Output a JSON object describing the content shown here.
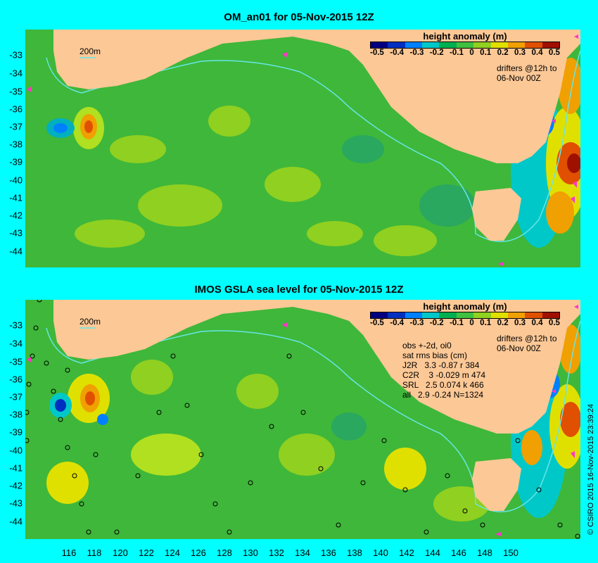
{
  "panels": [
    {
      "title": "OM_an01 for 05-Nov-2015 12Z",
      "legend_title": "height anomaly (m)",
      "legend_ticks": [
        "-0.5",
        "-0.4",
        "-0.3",
        "-0.2",
        "-0.1",
        "0",
        "0.1",
        "0.2",
        "0.3",
        "0.4",
        "0.5"
      ],
      "drifters_label": "drifters @12h to",
      "drifters_time": "06-Nov 00Z",
      "scale_label": "200m"
    },
    {
      "title": "IMOS GSLA sea level  for 05-Nov-2015 12Z",
      "legend_title": "height anomaly (m)",
      "legend_ticks": [
        "-0.5",
        "-0.4",
        "-0.3",
        "-0.2",
        "-0.1",
        "0",
        "0.1",
        "0.2",
        "0.3",
        "0.4",
        "0.5"
      ],
      "drifters_label": "drifters @12h to",
      "drifters_time": "06-Nov 00Z",
      "scale_label": "200m",
      "stats": {
        "header1": "obs +-2d, oi0",
        "header2": "sat rms bias (cm)",
        "rows": [
          "J2R   3.3 -0.87 r 384",
          "C2R    3 -0.029 m 474",
          "SRL   2.5 0.074 k 466",
          "all   2.9 -0.24 N=1324"
        ]
      }
    }
  ],
  "latitude_labels": [
    "-33",
    "-34",
    "-35",
    "-36",
    "-37",
    "-38",
    "-39",
    "-40",
    "-41",
    "-42",
    "-43",
    "-44"
  ],
  "longitude_labels": [
    "116",
    "118",
    "120",
    "122",
    "124",
    "126",
    "128",
    "130",
    "132",
    "134",
    "136",
    "138",
    "140",
    "142",
    "144",
    "146",
    "148",
    "150"
  ],
  "credit": "© CSIRO 2015  16-Nov-2015 23:39:24",
  "colors": {
    "background": "#00ffff",
    "land": "#fcc896",
    "ocean_base": "#3fb73a",
    "coastline_200m": "#66e6e6",
    "drifters": "#ff33cc",
    "track_circles": "#000000",
    "colorbar": [
      "#000080",
      "#0030c0",
      "#0080ff",
      "#00c8c8",
      "#00b050",
      "#40c040",
      "#90d020",
      "#e0e000",
      "#f0a000",
      "#e05000",
      "#a01000"
    ]
  }
}
